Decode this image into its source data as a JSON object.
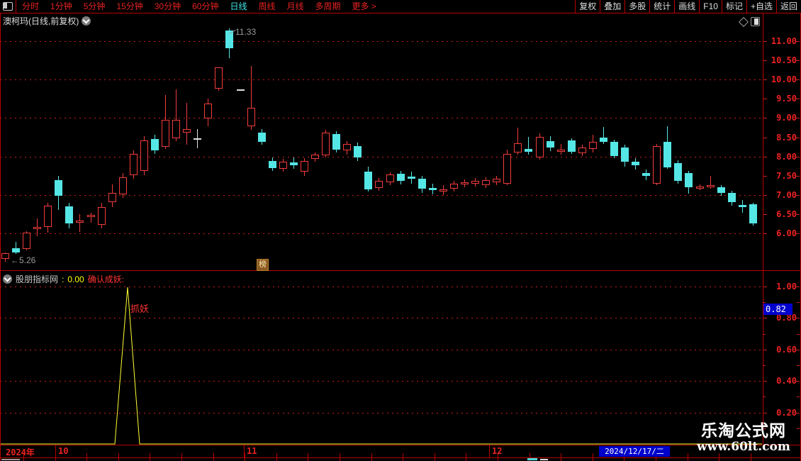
{
  "toolbar": {
    "left_items": [
      "分时",
      "1分钟",
      "5分钟",
      "15分钟",
      "30分钟",
      "60分钟",
      "日线",
      "周线",
      "月线",
      "多周期",
      "更多 >"
    ],
    "active_item": "日线",
    "right_items": [
      "复权",
      "叠加",
      "多股",
      "统计",
      "画线",
      "F10",
      "标记",
      "+自选",
      "返回"
    ]
  },
  "chart": {
    "title": "澳柯玛(日线,前复权)",
    "peak_label": "11.33",
    "low_label": "←5.26",
    "badge": "榜"
  },
  "indicator": {
    "name": "股朋指标网",
    "sep": ":",
    "value": "0.00",
    "signal_label": "确认成妖:",
    "spike_label": "抓妖",
    "marker_value": "0.82"
  },
  "x_axis": {
    "labels": [
      {
        "text": "2024年",
        "x": 8
      },
      {
        "text": "10",
        "x": 82
      },
      {
        "text": "11",
        "x": 348
      },
      {
        "text": "12",
        "x": 694
      }
    ],
    "dividers": [
      78,
      344,
      690
    ],
    "date_label": "2024/12/17/二"
  },
  "watermark": {
    "line1": "乐淘公式网",
    "line2": "www.60lt.com"
  },
  "colors": {
    "up": "#f23c3c",
    "down": "#55e6e6",
    "doji": "#e0e0e0",
    "grid": "#cc2222",
    "axis_text": "#ee2222",
    "indicator_line": "#ffff33",
    "highlight_bg": "#0000cc",
    "signal_text": "#ff3333",
    "value_text": "#ffff00"
  },
  "chart_data": {
    "type": "candlestick",
    "title": "澳柯玛(日线,前复权)",
    "ylim": [
      5.2,
      11.5
    ],
    "y_ticks": [
      "11.00",
      "10.50",
      "10.00",
      "9.50",
      "9.00",
      "8.50",
      "8.00",
      "7.50",
      "7.00",
      "6.50",
      "6.00"
    ],
    "high_annotation": 11.33,
    "low_annotation": 5.26,
    "candles": [
      {
        "k": "r",
        "o": 5.34,
        "c": 5.48,
        "h": 5.5,
        "l": 5.26
      },
      {
        "k": "c",
        "o": 5.62,
        "c": 5.5,
        "h": 5.78,
        "l": 5.46
      },
      {
        "k": "r",
        "o": 5.6,
        "c": 6.02,
        "h": 6.06,
        "l": 5.56
      },
      {
        "k": "r",
        "o": 6.14,
        "c": 6.17,
        "h": 6.39,
        "l": 5.92
      },
      {
        "k": "r",
        "o": 6.16,
        "c": 6.72,
        "h": 6.8,
        "l": 6.02
      },
      {
        "k": "c",
        "o": 7.38,
        "c": 6.98,
        "h": 7.5,
        "l": 6.6
      },
      {
        "k": "c",
        "o": 6.7,
        "c": 6.26,
        "h": 6.8,
        "l": 6.13
      },
      {
        "k": "r",
        "o": 6.3,
        "c": 6.34,
        "h": 6.5,
        "l": 6.04
      },
      {
        "k": "r",
        "o": 6.42,
        "c": 6.48,
        "h": 6.54,
        "l": 6.28
      },
      {
        "k": "r",
        "o": 6.22,
        "c": 6.68,
        "h": 6.8,
        "l": 6.13
      },
      {
        "k": "r",
        "o": 6.82,
        "c": 7.06,
        "h": 7.28,
        "l": 6.68
      },
      {
        "k": "r",
        "o": 7.02,
        "c": 7.46,
        "h": 7.56,
        "l": 6.92
      },
      {
        "k": "r",
        "o": 7.52,
        "c": 8.06,
        "h": 8.16,
        "l": 7.42
      },
      {
        "k": "r",
        "o": 7.62,
        "c": 8.42,
        "h": 8.52,
        "l": 7.52
      },
      {
        "k": "c",
        "o": 8.46,
        "c": 8.16,
        "h": 8.56,
        "l": 8.06
      },
      {
        "k": "r",
        "o": 8.26,
        "c": 8.96,
        "h": 9.6,
        "l": 8.2
      },
      {
        "k": "r",
        "o": 8.48,
        "c": 8.96,
        "h": 9.75,
        "l": 8.4
      },
      {
        "k": "r",
        "o": 8.62,
        "c": 8.72,
        "h": 9.4,
        "l": 8.3
      },
      {
        "k": "w",
        "o": 8.45,
        "c": 8.45,
        "h": 8.72,
        "l": 8.22
      },
      {
        "k": "r",
        "o": 8.98,
        "c": 9.38,
        "h": 9.5,
        "l": 8.78
      },
      {
        "k": "r",
        "o": 9.76,
        "c": 10.32,
        "h": 10.32,
        "l": 9.7
      },
      {
        "k": "c",
        "o": 11.27,
        "c": 10.81,
        "h": 11.33,
        "l": 10.56
      },
      {
        "k": "w",
        "o": 9.73,
        "c": 9.73,
        "h": 9.74,
        "l": 9.72
      },
      {
        "k": "r",
        "o": 8.78,
        "c": 9.27,
        "h": 10.35,
        "l": 8.7
      },
      {
        "k": "c",
        "o": 8.62,
        "c": 8.38,
        "h": 8.72,
        "l": 8.3
      },
      {
        "k": "c",
        "o": 7.88,
        "c": 7.7,
        "h": 7.98,
        "l": 7.62
      },
      {
        "k": "r",
        "o": 7.68,
        "c": 7.87,
        "h": 7.93,
        "l": 7.6
      },
      {
        "k": "c",
        "o": 7.84,
        "c": 7.78,
        "h": 7.97,
        "l": 7.68
      },
      {
        "k": "r",
        "o": 7.6,
        "c": 7.88,
        "h": 7.96,
        "l": 7.5
      },
      {
        "k": "r",
        "o": 7.94,
        "c": 8.04,
        "h": 8.1,
        "l": 7.86
      },
      {
        "k": "r",
        "o": 8.03,
        "c": 8.62,
        "h": 8.7,
        "l": 7.98
      },
      {
        "k": "c",
        "o": 8.58,
        "c": 8.18,
        "h": 8.66,
        "l": 8.1
      },
      {
        "k": "r",
        "o": 8.16,
        "c": 8.32,
        "h": 8.4,
        "l": 8.05
      },
      {
        "k": "c",
        "o": 8.27,
        "c": 7.97,
        "h": 8.36,
        "l": 7.88
      },
      {
        "k": "c",
        "o": 7.6,
        "c": 7.15,
        "h": 7.74,
        "l": 7.08
      },
      {
        "k": "r",
        "o": 7.19,
        "c": 7.37,
        "h": 7.43,
        "l": 7.1
      },
      {
        "k": "r",
        "o": 7.33,
        "c": 7.53,
        "h": 7.59,
        "l": 7.25
      },
      {
        "k": "c",
        "o": 7.55,
        "c": 7.36,
        "h": 7.63,
        "l": 7.28
      },
      {
        "k": "c",
        "o": 7.48,
        "c": 7.42,
        "h": 7.6,
        "l": 7.3
      },
      {
        "k": "c",
        "o": 7.42,
        "c": 7.16,
        "h": 7.49,
        "l": 7.06
      },
      {
        "k": "c",
        "o": 7.19,
        "c": 7.12,
        "h": 7.29,
        "l": 7.02
      },
      {
        "k": "r",
        "o": 7.1,
        "c": 7.15,
        "h": 7.25,
        "l": 7.0
      },
      {
        "k": "r",
        "o": 7.16,
        "c": 7.3,
        "h": 7.36,
        "l": 7.08
      },
      {
        "k": "r",
        "o": 7.28,
        "c": 7.33,
        "h": 7.41,
        "l": 7.2
      },
      {
        "k": "r",
        "o": 7.3,
        "c": 7.36,
        "h": 7.44,
        "l": 7.22
      },
      {
        "k": "r",
        "o": 7.26,
        "c": 7.38,
        "h": 7.45,
        "l": 7.18
      },
      {
        "k": "r",
        "o": 7.32,
        "c": 7.42,
        "h": 7.5,
        "l": 7.26
      },
      {
        "k": "r",
        "o": 7.29,
        "c": 8.07,
        "h": 8.18,
        "l": 7.25
      },
      {
        "k": "r",
        "o": 8.1,
        "c": 8.34,
        "h": 8.75,
        "l": 8.04
      },
      {
        "k": "c",
        "o": 8.2,
        "c": 8.12,
        "h": 8.51,
        "l": 8.05
      },
      {
        "k": "r",
        "o": 7.97,
        "c": 8.51,
        "h": 8.6,
        "l": 7.92
      },
      {
        "k": "c",
        "o": 8.4,
        "c": 8.23,
        "h": 8.52,
        "l": 8.14
      },
      {
        "k": "r",
        "o": 8.14,
        "c": 8.18,
        "h": 8.32,
        "l": 8.04
      },
      {
        "k": "c",
        "o": 8.42,
        "c": 8.12,
        "h": 8.48,
        "l": 8.06
      },
      {
        "k": "r",
        "o": 8.09,
        "c": 8.23,
        "h": 8.3,
        "l": 8.02
      },
      {
        "k": "r",
        "o": 8.2,
        "c": 8.38,
        "h": 8.56,
        "l": 8.1
      },
      {
        "k": "c",
        "o": 8.49,
        "c": 8.38,
        "h": 8.76,
        "l": 8.32
      },
      {
        "k": "c",
        "o": 8.38,
        "c": 8.01,
        "h": 8.44,
        "l": 7.95
      },
      {
        "k": "c",
        "o": 8.23,
        "c": 7.86,
        "h": 8.3,
        "l": 7.73
      },
      {
        "k": "c",
        "o": 7.86,
        "c": 7.78,
        "h": 7.96,
        "l": 7.66
      },
      {
        "k": "c",
        "o": 7.56,
        "c": 7.5,
        "h": 7.66,
        "l": 7.38
      },
      {
        "k": "r",
        "o": 7.3,
        "c": 8.27,
        "h": 8.33,
        "l": 7.26
      },
      {
        "k": "c",
        "o": 8.38,
        "c": 7.72,
        "h": 8.78,
        "l": 7.68
      },
      {
        "k": "c",
        "o": 7.83,
        "c": 7.37,
        "h": 7.9,
        "l": 7.3
      },
      {
        "k": "c",
        "o": 7.57,
        "c": 7.2,
        "h": 7.62,
        "l": 7.04
      },
      {
        "k": "r",
        "o": 7.18,
        "c": 7.22,
        "h": 7.28,
        "l": 7.12
      },
      {
        "k": "r",
        "o": 7.22,
        "c": 7.26,
        "h": 7.49,
        "l": 7.16
      },
      {
        "k": "c",
        "o": 7.2,
        "c": 7.05,
        "h": 7.26,
        "l": 6.97
      },
      {
        "k": "c",
        "o": 7.05,
        "c": 6.81,
        "h": 7.1,
        "l": 6.72
      },
      {
        "k": "c",
        "o": 6.74,
        "c": 6.7,
        "h": 6.87,
        "l": 6.54
      },
      {
        "k": "c",
        "o": 6.76,
        "c": 6.26,
        "h": 6.8,
        "l": 6.2
      }
    ],
    "sub_indicator": {
      "type": "line",
      "ylim": [
        0,
        1.05
      ],
      "y_ticks": [
        "1.00",
        "0.80",
        "0.60",
        "0.40",
        "0.20"
      ],
      "last_value": 0.0,
      "marker_value": 0.82,
      "points": [
        [
          0,
          0
        ],
        [
          162,
          0
        ],
        [
          180,
          0.995
        ],
        [
          197,
          0
        ],
        [
          1075,
          0
        ]
      ]
    }
  }
}
